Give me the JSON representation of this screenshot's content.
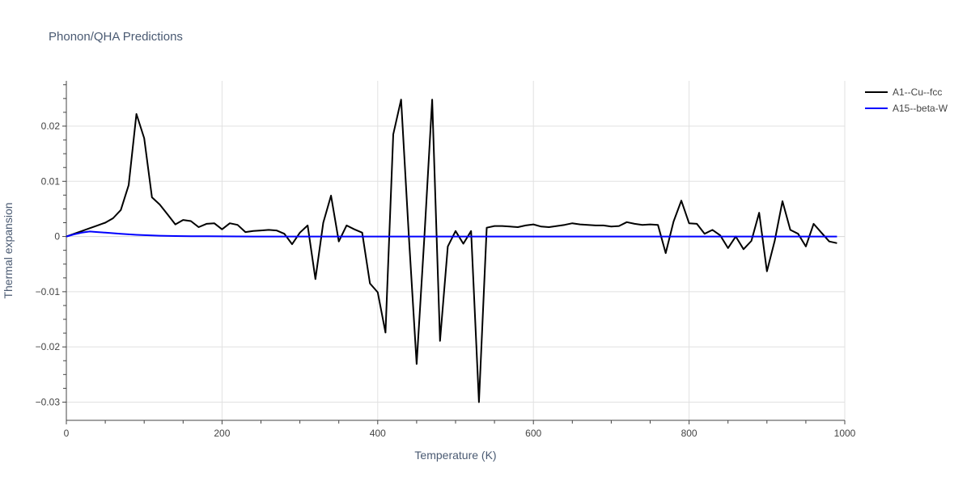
{
  "chart_data": {
    "type": "line",
    "title": "Phonon/QHA Predictions",
    "xlabel": "Temperature (K)",
    "ylabel": "Thermal expansion",
    "xlim": [
      0,
      1000
    ],
    "ylim": [
      -0.0333,
      0.0282
    ],
    "x_ticks": [
      0,
      200,
      400,
      600,
      800,
      1000
    ],
    "x_tick_labels": [
      "0",
      "200",
      "400",
      "600",
      "800",
      "1000"
    ],
    "y_ticks": [
      0.02,
      0.01,
      0,
      -0.01,
      -0.02,
      -0.03
    ],
    "y_tick_labels": [
      "0.02",
      "0.01",
      "0",
      "−0.01",
      "−0.02",
      "−0.03"
    ],
    "grid": true,
    "legend": "top-right",
    "series": [
      {
        "name": "A1--Cu--fcc",
        "color": "#000000",
        "x": [
          0,
          10,
          20,
          30,
          40,
          50,
          60,
          70,
          80,
          90,
          100,
          110,
          120,
          130,
          140,
          150,
          160,
          170,
          180,
          190,
          200,
          210,
          220,
          230,
          240,
          250,
          260,
          270,
          280,
          290,
          300,
          310,
          320,
          330,
          340,
          350,
          360,
          370,
          380,
          390,
          400,
          410,
          420,
          430,
          440,
          450,
          460,
          470,
          480,
          490,
          500,
          510,
          520,
          530,
          540,
          550,
          560,
          570,
          580,
          590,
          600,
          610,
          620,
          630,
          640,
          650,
          660,
          670,
          680,
          690,
          700,
          710,
          720,
          730,
          740,
          750,
          760,
          770,
          780,
          790,
          800,
          810,
          820,
          830,
          840,
          850,
          860,
          870,
          880,
          890,
          900,
          910,
          920,
          930,
          940,
          950,
          960,
          970,
          980,
          990
        ],
        "y": [
          0.0,
          0.0005,
          0.001,
          0.0015,
          0.002,
          0.0025,
          0.0033,
          0.0048,
          0.0093,
          0.0222,
          0.0178,
          0.0071,
          0.0058,
          0.004,
          0.0022,
          0.003,
          0.0028,
          0.0017,
          0.0023,
          0.0024,
          0.0013,
          0.0024,
          0.0021,
          0.0008,
          0.001,
          0.0011,
          0.0012,
          0.0011,
          0.0005,
          -0.0014,
          0.0007,
          0.002,
          -0.0077,
          0.0025,
          0.0074,
          -0.0009,
          0.002,
          0.0013,
          0.0007,
          -0.0085,
          -0.0101,
          -0.0174,
          0.0185,
          0.0248,
          0.0,
          -0.0231,
          0.0,
          0.0248,
          -0.0189,
          -0.0018,
          0.001,
          -0.0013,
          0.001,
          -0.03,
          0.0016,
          0.0019,
          0.0019,
          0.0018,
          0.0017,
          0.002,
          0.0022,
          0.0018,
          0.0017,
          0.0019,
          0.0021,
          0.0024,
          0.0022,
          0.0021,
          0.002,
          0.002,
          0.0018,
          0.0019,
          0.0026,
          0.0023,
          0.0021,
          0.0022,
          0.0021,
          -0.003,
          0.0027,
          0.0065,
          0.0024,
          0.0023,
          0.0005,
          0.0012,
          0.0002,
          -0.0021,
          0.0,
          -0.0023,
          -0.0008,
          0.0043,
          -0.0063,
          -0.0008,
          0.0064,
          0.0012,
          0.0005,
          -0.0018,
          0.0023,
          0.0007,
          -0.0009,
          -0.0012
        ]
      },
      {
        "name": "A15--beta-W",
        "color": "#0000ff",
        "x": [
          0,
          10,
          20,
          30,
          40,
          50,
          60,
          70,
          80,
          90,
          100,
          120,
          140,
          160,
          180,
          200,
          240,
          300,
          400,
          500,
          600,
          700,
          800,
          900,
          990
        ],
        "y": [
          0.0,
          0.0004,
          0.0007,
          0.0009,
          0.0008,
          0.0007,
          0.0006,
          0.0005,
          0.0004,
          0.0003,
          0.00025,
          0.00015,
          8e-05,
          6e-05,
          4e-05,
          2e-05,
          0.0,
          0.0,
          0.0,
          0.0,
          0.0,
          0.0,
          0.0,
          0.0,
          0.0
        ]
      }
    ]
  }
}
